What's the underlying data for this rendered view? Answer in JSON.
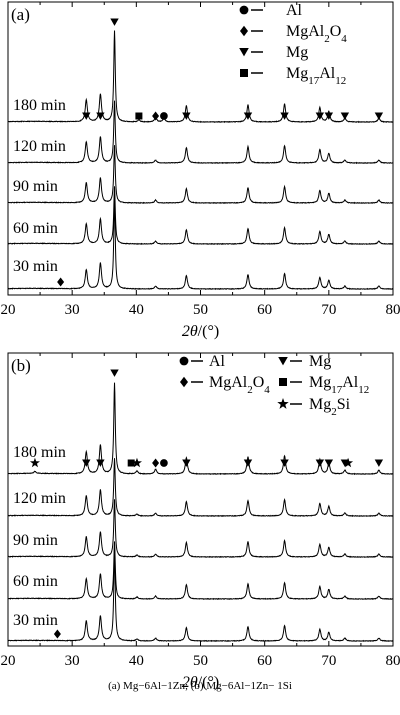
{
  "caption": "(a) Mg−6Al−1Zn; (b) Mg−6Al−1Zn− 1Si",
  "chart_data": [
    {
      "type": "line",
      "panel_label": "(a)",
      "xlabel": "2θ/(°)",
      "xlim": [
        20,
        80
      ],
      "xticks": [
        "20",
        "30",
        "40",
        "50",
        "60",
        "70",
        "80"
      ],
      "yticks_shown": false,
      "legend": [
        {
          "marker": "circle",
          "label": "Al"
        },
        {
          "marker": "diamond",
          "label": "MgAl2O4"
        },
        {
          "marker": "triangle-down",
          "label": "Mg"
        },
        {
          "marker": "square",
          "label": "Mg17Al12"
        }
      ],
      "series": [
        {
          "name": "180 min",
          "peaks": [
            {
              "x": 32.2,
              "h": 0.23
            },
            {
              "x": 34.4,
              "h": 0.29
            },
            {
              "x": 36.6,
              "h": 0.95
            },
            {
              "x": 40.4,
              "h": 0.02
            },
            {
              "x": 43.0,
              "h": 0.05
            },
            {
              "x": 44.3,
              "h": 0.04
            },
            {
              "x": 47.8,
              "h": 0.17
            },
            {
              "x": 57.4,
              "h": 0.18
            },
            {
              "x": 63.1,
              "h": 0.19
            },
            {
              "x": 68.6,
              "h": 0.15
            },
            {
              "x": 70.0,
              "h": 0.11
            },
            {
              "x": 72.5,
              "h": 0.04
            },
            {
              "x": 77.8,
              "h": 0.04
            }
          ]
        },
        {
          "name": "120 min",
          "peaks": [
            {
              "x": 32.2,
              "h": 0.22
            },
            {
              "x": 34.4,
              "h": 0.27
            },
            {
              "x": 36.6,
              "h": 0.65
            },
            {
              "x": 43.0,
              "h": 0.03
            },
            {
              "x": 47.8,
              "h": 0.16
            },
            {
              "x": 57.4,
              "h": 0.17
            },
            {
              "x": 63.1,
              "h": 0.18
            },
            {
              "x": 68.6,
              "h": 0.14
            },
            {
              "x": 70.0,
              "h": 0.1
            },
            {
              "x": 72.5,
              "h": 0.03
            },
            {
              "x": 77.8,
              "h": 0.03
            }
          ]
        },
        {
          "name": "90 min",
          "peaks": [
            {
              "x": 32.2,
              "h": 0.21
            },
            {
              "x": 34.4,
              "h": 0.26
            },
            {
              "x": 36.6,
              "h": 0.6
            },
            {
              "x": 43.0,
              "h": 0.03
            },
            {
              "x": 47.8,
              "h": 0.15
            },
            {
              "x": 57.4,
              "h": 0.16
            },
            {
              "x": 63.1,
              "h": 0.17
            },
            {
              "x": 68.6,
              "h": 0.13
            },
            {
              "x": 70.0,
              "h": 0.1
            },
            {
              "x": 72.5,
              "h": 0.03
            },
            {
              "x": 77.8,
              "h": 0.03
            }
          ]
        },
        {
          "name": "60 min",
          "peaks": [
            {
              "x": 32.2,
              "h": 0.21
            },
            {
              "x": 34.4,
              "h": 0.26
            },
            {
              "x": 36.6,
              "h": 0.6
            },
            {
              "x": 43.0,
              "h": 0.03
            },
            {
              "x": 47.8,
              "h": 0.15
            },
            {
              "x": 57.4,
              "h": 0.16
            },
            {
              "x": 63.1,
              "h": 0.17
            },
            {
              "x": 68.6,
              "h": 0.13
            },
            {
              "x": 70.0,
              "h": 0.1
            },
            {
              "x": 72.5,
              "h": 0.03
            },
            {
              "x": 77.8,
              "h": 0.03
            }
          ]
        },
        {
          "name": "30 min",
          "peaks": [
            {
              "x": 32.2,
              "h": 0.2
            },
            {
              "x": 34.4,
              "h": 0.27
            },
            {
              "x": 36.6,
              "h": 0.95
            },
            {
              "x": 43.0,
              "h": 0.03
            },
            {
              "x": 47.8,
              "h": 0.14
            },
            {
              "x": 57.4,
              "h": 0.15
            },
            {
              "x": 63.1,
              "h": 0.16
            },
            {
              "x": 68.6,
              "h": 0.12
            },
            {
              "x": 70.0,
              "h": 0.09
            },
            {
              "x": 72.5,
              "h": 0.03
            },
            {
              "x": 77.8,
              "h": 0.03
            }
          ]
        }
      ],
      "peak_markers": [
        {
          "series": "180 min",
          "marker": "triangle-down",
          "x": [
            32.2,
            34.4,
            36.6,
            47.8,
            57.4,
            63.1,
            68.6,
            70.0,
            72.5,
            77.8
          ]
        },
        {
          "series": "180 min",
          "marker": "square",
          "x": [
            40.4
          ]
        },
        {
          "series": "180 min",
          "marker": "diamond",
          "x": [
            43.0
          ]
        },
        {
          "series": "180 min",
          "marker": "circle",
          "x": [
            44.3
          ]
        },
        {
          "series": "30 min",
          "marker": "diamond",
          "x": [
            28.2
          ]
        }
      ]
    },
    {
      "type": "line",
      "panel_label": "(b)",
      "xlabel": "2θ/(°)",
      "xlim": [
        20,
        80
      ],
      "xticks": [
        "20",
        "30",
        "40",
        "50",
        "60",
        "70",
        "80"
      ],
      "yticks_shown": false,
      "legend": [
        {
          "marker": "circle",
          "label": "Al"
        },
        {
          "marker": "diamond",
          "label": "MgAl2O4"
        },
        {
          "marker": "triangle-down",
          "label": "Mg"
        },
        {
          "marker": "square",
          "label": "Mg17Al12"
        },
        {
          "marker": "star",
          "label": "Mg2Si"
        }
      ],
      "series": [
        {
          "name": "180 min",
          "peaks": [
            {
              "x": 24.2,
              "h": 0.02
            },
            {
              "x": 32.2,
              "h": 0.23
            },
            {
              "x": 34.4,
              "h": 0.3
            },
            {
              "x": 36.6,
              "h": 0.95
            },
            {
              "x": 40.1,
              "h": 0.03
            },
            {
              "x": 43.0,
              "h": 0.05
            },
            {
              "x": 47.8,
              "h": 0.17
            },
            {
              "x": 57.4,
              "h": 0.18
            },
            {
              "x": 63.1,
              "h": 0.19
            },
            {
              "x": 68.6,
              "h": 0.15
            },
            {
              "x": 70.0,
              "h": 0.11
            },
            {
              "x": 72.5,
              "h": 0.04
            },
            {
              "x": 77.8,
              "h": 0.04
            }
          ]
        },
        {
          "name": "120 min",
          "peaks": [
            {
              "x": 32.2,
              "h": 0.21
            },
            {
              "x": 34.4,
              "h": 0.27
            },
            {
              "x": 36.6,
              "h": 0.6
            },
            {
              "x": 40.1,
              "h": 0.02
            },
            {
              "x": 43.0,
              "h": 0.03
            },
            {
              "x": 47.8,
              "h": 0.15
            },
            {
              "x": 57.4,
              "h": 0.16
            },
            {
              "x": 63.1,
              "h": 0.17
            },
            {
              "x": 68.6,
              "h": 0.13
            },
            {
              "x": 70.0,
              "h": 0.1
            },
            {
              "x": 72.5,
              "h": 0.03
            },
            {
              "x": 77.8,
              "h": 0.03
            }
          ]
        },
        {
          "name": "90 min",
          "peaks": [
            {
              "x": 32.2,
              "h": 0.21
            },
            {
              "x": 34.4,
              "h": 0.26
            },
            {
              "x": 36.6,
              "h": 0.6
            },
            {
              "x": 40.1,
              "h": 0.02
            },
            {
              "x": 43.0,
              "h": 0.03
            },
            {
              "x": 47.8,
              "h": 0.15
            },
            {
              "x": 57.4,
              "h": 0.16
            },
            {
              "x": 63.1,
              "h": 0.17
            },
            {
              "x": 68.6,
              "h": 0.13
            },
            {
              "x": 70.0,
              "h": 0.1
            },
            {
              "x": 72.5,
              "h": 0.03
            },
            {
              "x": 77.8,
              "h": 0.03
            }
          ]
        },
        {
          "name": "60 min",
          "peaks": [
            {
              "x": 32.2,
              "h": 0.21
            },
            {
              "x": 34.4,
              "h": 0.26
            },
            {
              "x": 36.6,
              "h": 0.6
            },
            {
              "x": 40.1,
              "h": 0.02
            },
            {
              "x": 43.0,
              "h": 0.03
            },
            {
              "x": 47.8,
              "h": 0.15
            },
            {
              "x": 57.4,
              "h": 0.16
            },
            {
              "x": 63.1,
              "h": 0.17
            },
            {
              "x": 68.6,
              "h": 0.13
            },
            {
              "x": 70.0,
              "h": 0.1
            },
            {
              "x": 72.5,
              "h": 0.03
            },
            {
              "x": 77.8,
              "h": 0.03
            }
          ]
        },
        {
          "name": "30 min",
          "peaks": [
            {
              "x": 32.2,
              "h": 0.21
            },
            {
              "x": 34.4,
              "h": 0.26
            },
            {
              "x": 36.6,
              "h": 0.95
            },
            {
              "x": 40.1,
              "h": 0.02
            },
            {
              "x": 43.0,
              "h": 0.03
            },
            {
              "x": 47.8,
              "h": 0.14
            },
            {
              "x": 57.4,
              "h": 0.15
            },
            {
              "x": 63.1,
              "h": 0.16
            },
            {
              "x": 68.6,
              "h": 0.12
            },
            {
              "x": 70.0,
              "h": 0.09
            },
            {
              "x": 72.5,
              "h": 0.03
            },
            {
              "x": 77.8,
              "h": 0.03
            }
          ]
        }
      ],
      "peak_markers": [
        {
          "series": "180 min",
          "marker": "star",
          "x": [
            24.2,
            40.1,
            73.0
          ]
        },
        {
          "series": "180 min",
          "marker": "triangle-down",
          "x": [
            32.2,
            34.4,
            36.6,
            47.8,
            57.4,
            63.1,
            68.6,
            70.0,
            72.5,
            77.8
          ]
        },
        {
          "series": "180 min",
          "marker": "square",
          "x": [
            39.2
          ]
        },
        {
          "series": "180 min",
          "marker": "diamond",
          "x": [
            43.0
          ]
        },
        {
          "series": "180 min",
          "marker": "circle",
          "x": [
            44.3
          ]
        },
        {
          "series": "30 min",
          "marker": "diamond",
          "x": [
            27.7
          ]
        }
      ]
    }
  ]
}
